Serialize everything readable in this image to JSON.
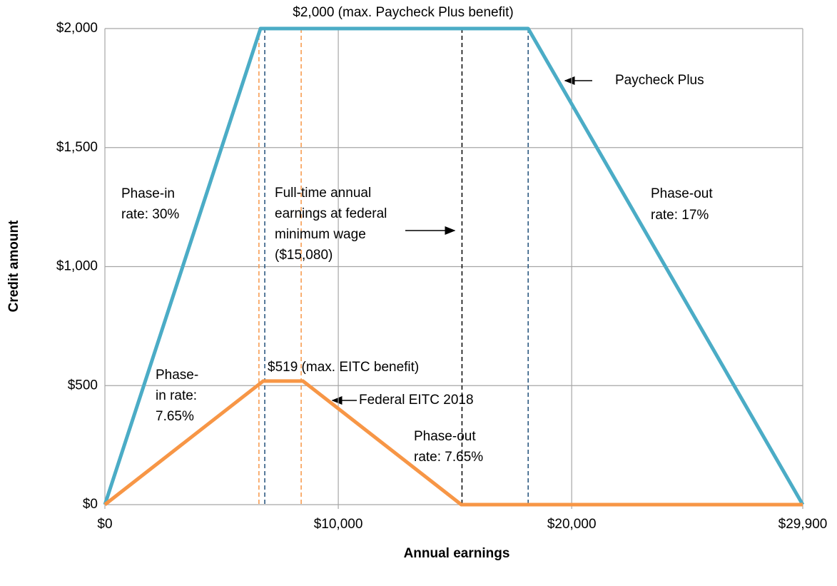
{
  "chart_data": {
    "type": "line",
    "x_label": "Annual earnings",
    "y_label": "Credit amount",
    "xlim": [
      0,
      29900
    ],
    "ylim": [
      0,
      2000
    ],
    "xticks": [
      {
        "value": 0,
        "label": "$0"
      },
      {
        "value": 10000,
        "label": "$10,000"
      },
      {
        "value": 20000,
        "label": "$20,000"
      },
      {
        "value": 29900,
        "label": "$29,900"
      }
    ],
    "yticks": [
      {
        "value": 0,
        "label": "$0"
      },
      {
        "value": 500,
        "label": "$500"
      },
      {
        "value": 1000,
        "label": "$1,000"
      },
      {
        "value": 1500,
        "label": "$1,500"
      },
      {
        "value": 2000,
        "label": "$2,000"
      }
    ],
    "grid": true,
    "series": [
      {
        "name": "Paycheck Plus",
        "color": "#4bacc6",
        "x": [
          0,
          6667,
          18135,
          29900
        ],
        "values": [
          0,
          2000,
          2000,
          0
        ]
      },
      {
        "name": "Federal EITC 2018",
        "color": "#f79646",
        "x": [
          0,
          6780,
          8490,
          15270,
          29900
        ],
        "values": [
          0,
          519,
          519,
          0,
          0
        ]
      }
    ],
    "reference_lines": [
      {
        "x": 6850,
        "color": "#1f4e79"
      },
      {
        "x": 18135,
        "color": "#1f4e79"
      },
      {
        "x": 6600,
        "color": "#f79646"
      },
      {
        "x": 8410,
        "color": "#f79646"
      },
      {
        "x": 15300,
        "color": "#000000"
      }
    ],
    "annotations": [
      {
        "lines": [
          "$2,000 (max. Paycheck Plus benefit)"
        ]
      },
      {
        "lines": [
          "Phase-in",
          "rate: 30%"
        ]
      },
      {
        "lines": [
          "Full-time annual",
          "earnings at federal",
          "minimum wage",
          "($15,080)"
        ]
      },
      {
        "lines": [
          "Phase-out",
          "rate: 17%"
        ]
      },
      {
        "lines": [
          "$519 (max. EITC benefit)"
        ]
      },
      {
        "lines": [
          "Phase-",
          "in rate:",
          "7.65%"
        ]
      },
      {
        "lines": [
          "Phase-out",
          "rate: 7.65%"
        ]
      }
    ]
  }
}
